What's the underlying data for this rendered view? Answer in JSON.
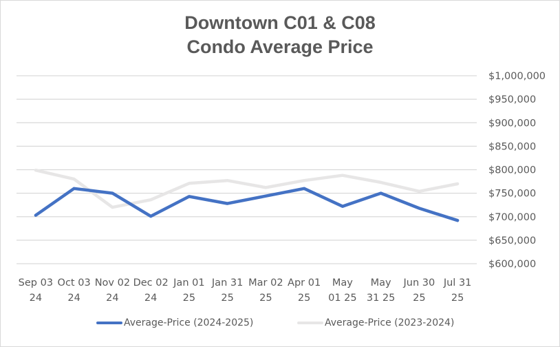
{
  "chart_data": {
    "type": "line",
    "title": [
      "Downtown C01 & C08",
      "Condo Average Price"
    ],
    "xlabel": "",
    "ylabel": "",
    "categories": [
      [
        "Sep 03",
        "24"
      ],
      [
        "Oct 03",
        "24"
      ],
      [
        "Nov 02",
        "24"
      ],
      [
        "Dec 02",
        "24"
      ],
      [
        "Jan 01",
        "25"
      ],
      [
        "Jan 31",
        "25"
      ],
      [
        "Mar 02",
        "25"
      ],
      [
        "Apr 01",
        "25"
      ],
      [
        "May",
        "01 25"
      ],
      [
        "May",
        "31 25"
      ],
      [
        "Jun 30",
        "25"
      ],
      [
        "Jul 31",
        "25"
      ]
    ],
    "ylim": [
      600000,
      1000000
    ],
    "y_ticks": [
      600000,
      650000,
      700000,
      750000,
      800000,
      850000,
      900000,
      950000,
      1000000
    ],
    "y_tick_labels": [
      "$600,000",
      "$650,000",
      "$700,000",
      "$750,000",
      "$800,000",
      "$850,000",
      "$900,000",
      "$950,000",
      "$1,000,000"
    ],
    "y_axis_side": "right",
    "grid": true,
    "legend_position": "bottom",
    "series": [
      {
        "name": "Average-Price (2024-2025)",
        "color": "#4472c4",
        "values": [
          703000,
          760000,
          750000,
          701000,
          743000,
          728000,
          744000,
          760000,
          722000,
          750000,
          718000,
          692000
        ]
      },
      {
        "name": "Average-Price (2023-2024)",
        "color": "#e7e6e6",
        "values": [
          799000,
          780000,
          720000,
          736000,
          771000,
          777000,
          762000,
          777000,
          788000,
          773000,
          754000,
          770000
        ]
      }
    ]
  },
  "colors": {
    "title": "#595959",
    "axis_text": "#595959",
    "gridline": "#d9d9d9",
    "border": "#d9d9d9"
  }
}
